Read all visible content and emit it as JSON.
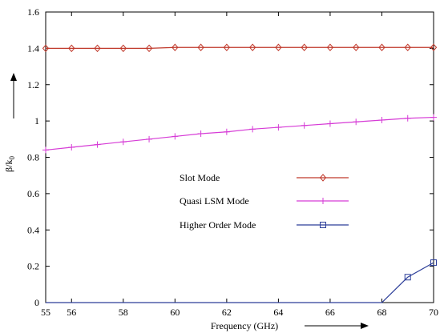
{
  "chart_data": {
    "type": "line",
    "xlabel": "Frequency (GHz)",
    "ylabel": "β/k",
    "ylabel_sub": "0",
    "xlim": [
      55,
      70
    ],
    "ylim": [
      0,
      1.6
    ],
    "xticks": [
      55,
      56,
      58,
      60,
      62,
      64,
      66,
      68,
      70
    ],
    "yticks": [
      0,
      0.2,
      0.4,
      0.6,
      0.8,
      1,
      1.2,
      1.4,
      1.6
    ],
    "ytick_labels": [
      "0",
      "0.2",
      "0.4",
      "0.6",
      "0.8",
      "1",
      "1.2",
      "1.4",
      "1.6"
    ],
    "grid": false,
    "legend_position": "center",
    "series": [
      {
        "name": "Slot Mode",
        "color": "#c0392b",
        "marker": "diamond",
        "x": [
          55,
          56,
          57,
          58,
          59,
          60,
          61,
          62,
          63,
          64,
          65,
          66,
          67,
          68,
          69,
          70
        ],
        "y": [
          1.4,
          1.4,
          1.4,
          1.4,
          1.4,
          1.405,
          1.405,
          1.405,
          1.405,
          1.405,
          1.405,
          1.405,
          1.405,
          1.405,
          1.405,
          1.405
        ]
      },
      {
        "name": "Quasi LSM Mode",
        "color": "#d63bd6",
        "marker": "plus",
        "x": [
          55,
          56,
          57,
          58,
          59,
          60,
          61,
          62,
          63,
          64,
          65,
          66,
          67,
          68,
          69,
          70
        ],
        "y": [
          0.84,
          0.855,
          0.87,
          0.885,
          0.9,
          0.915,
          0.93,
          0.94,
          0.955,
          0.965,
          0.975,
          0.985,
          0.995,
          1.005,
          1.015,
          1.02
        ]
      },
      {
        "name": "Higher Order Mode",
        "color": "#2c3e99",
        "marker": "square",
        "x": [
          55,
          68,
          69,
          70
        ],
        "y": [
          0,
          0,
          0.14,
          0.22
        ],
        "marker_x": [
          69,
          70
        ],
        "marker_y": [
          0.14,
          0.22
        ]
      }
    ]
  }
}
